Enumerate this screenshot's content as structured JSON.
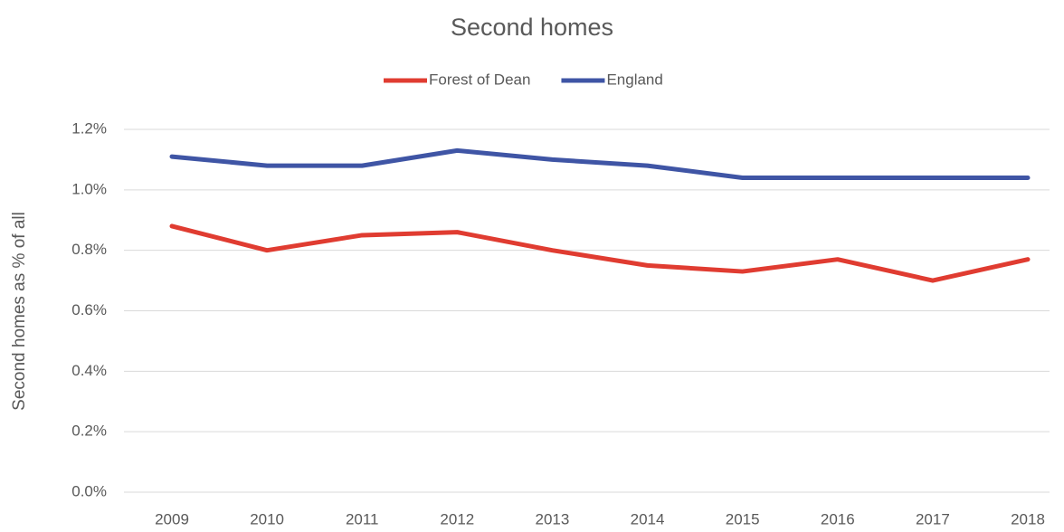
{
  "chart_data": {
    "type": "line",
    "title": "Second homes",
    "y_label": "Second homes as % of all",
    "categories": [
      "2009",
      "2010",
      "2011",
      "2012",
      "2013",
      "2014",
      "2015",
      "2016",
      "2017",
      "2018"
    ],
    "series": [
      {
        "name": "Forest of Dean",
        "color": "#e03c31",
        "values": [
          0.88,
          0.8,
          0.85,
          0.86,
          0.8,
          0.75,
          0.73,
          0.77,
          0.7,
          0.77
        ]
      },
      {
        "name": "England",
        "color": "#3f55a5",
        "values": [
          1.11,
          1.08,
          1.08,
          1.13,
          1.1,
          1.08,
          1.04,
          1.04,
          1.04,
          1.04
        ]
      }
    ],
    "ylim": [
      0,
      1.2
    ],
    "yticks": [
      {
        "value": 0,
        "label": "0.0%"
      },
      {
        "value": 0.2,
        "label": "0.2%"
      },
      {
        "value": 0.4,
        "label": "0.4%"
      },
      {
        "value": 0.6,
        "label": "0.6%"
      },
      {
        "value": 0.8,
        "label": "0.8%"
      },
      {
        "value": 1.0,
        "label": "1.0%"
      },
      {
        "value": 1.2,
        "label": "1.2%"
      }
    ],
    "grid": true,
    "legend": "top"
  }
}
